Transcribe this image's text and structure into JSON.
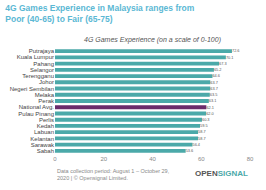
{
  "chart_data": {
    "type": "bar",
    "orientation": "horizontal",
    "title": "4G Games Experience in Malaysia ranges from Poor (40-65) to Fair (65-75)",
    "subtitle": "4G Games Experience (on a scale of 0-100)",
    "categories": [
      "Putrajaya",
      "Kuala Lumpur",
      "Pahang",
      "Selangor",
      "Terengganu",
      "Johor",
      "Negeri Sembilan",
      "Melaka",
      "Perak",
      "National Avg.",
      "Pulau Pinang",
      "Perlis",
      "Kedah",
      "Labuan",
      "Kelantan",
      "Sarawak",
      "Sabah"
    ],
    "values": [
      72.6,
      70.1,
      67.3,
      65.2,
      64.6,
      63.7,
      63.7,
      63.5,
      63.1,
      62.1,
      62.0,
      60.3,
      59.5,
      58.7,
      58.7,
      56.4,
      53.6
    ],
    "value_labels": [
      "72.6",
      "70.1",
      "67.3",
      "65.2",
      "64.6",
      "63.7",
      "63.7",
      "63.5",
      "63.1",
      "62.1",
      "62.0",
      "60.3",
      "59.5",
      "58.7",
      "58.7",
      "56.4",
      "53.6"
    ],
    "colors": [
      "#4BA9A9",
      "#4BA9A9",
      "#4BA9A9",
      "#4BA9A9",
      "#4BA9A9",
      "#4BA9A9",
      "#4BA9A9",
      "#4BA9A9",
      "#4BA9A9",
      "#6B2B6B",
      "#4BA9A9",
      "#4BA9A9",
      "#4BA9A9",
      "#4BA9A9",
      "#4BA9A9",
      "#4BA9A9",
      "#4BA9A9"
    ],
    "xlim": [
      0,
      80
    ],
    "xticks": [
      0,
      20,
      40,
      60,
      80
    ],
    "grid": false,
    "data_labels": true,
    "annotations": [
      {
        "text": "Data collection period: August 1 – October 29, 2020 | © Opensignal Limited."
      },
      {
        "text": "OPEN",
        "color": "#555555"
      },
      {
        "text": "SIGNAL",
        "color": "#4BA9A9"
      }
    ]
  }
}
